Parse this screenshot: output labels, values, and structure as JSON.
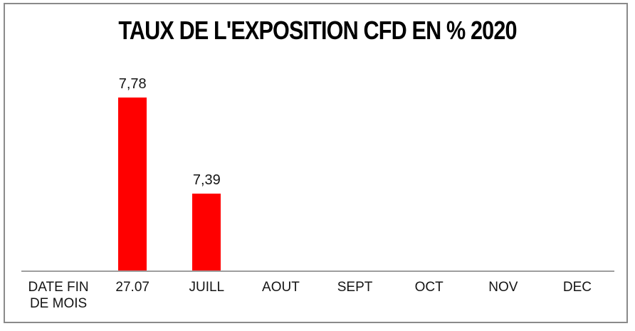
{
  "chart_data": {
    "type": "bar",
    "title": "TAUX DE L'EXPOSITION CFD EN % 2020",
    "categories": [
      "DATE FIN DE MOIS",
      "27.07",
      "JUILL",
      "AOUT",
      "SEPT",
      "OCT",
      "NOV",
      "DEC"
    ],
    "values": [
      null,
      7.78,
      7.39,
      null,
      null,
      null,
      null,
      null
    ],
    "value_labels": [
      null,
      "7,78",
      "7,39",
      null,
      null,
      null,
      null,
      null
    ],
    "xlabel": "",
    "ylabel": "",
    "ylim": [
      7.08,
      7.86
    ],
    "grid": false,
    "legend": "none",
    "colors": {
      "bar": "#ff0000",
      "axis_line": "#9e9e9e",
      "text": "#141414",
      "frame_border": "#8a8a8a",
      "background": "#ffffff"
    }
  }
}
